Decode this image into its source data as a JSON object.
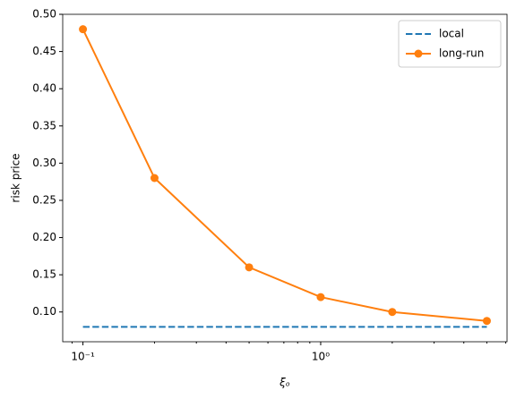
{
  "chart_data": {
    "type": "line",
    "xlabel": "ξₒ",
    "ylabel": "risk price",
    "x": [
      0.1,
      0.2,
      0.5,
      1,
      2,
      5
    ],
    "series": [
      {
        "name": "local",
        "color": "#1f77b4",
        "linestyle": "dashed",
        "marker": false,
        "values": [
          0.08,
          0.08,
          0.08,
          0.08,
          0.08,
          0.08
        ]
      },
      {
        "name": "long-run",
        "color": "#ff7f0e",
        "linestyle": "solid",
        "marker": true,
        "values": [
          0.48,
          0.28,
          0.16,
          0.12,
          0.1,
          0.088
        ]
      }
    ],
    "xscale": "log",
    "xlim": [
      0.0822,
      6.08
    ],
    "xticks": [
      {
        "value": 0.1,
        "label": "10⁻¹"
      },
      {
        "value": 1,
        "label": "10⁰"
      }
    ],
    "xminorticks": [
      0.09,
      0.2,
      0.3,
      0.4,
      0.5,
      0.6,
      0.7,
      0.8,
      0.9,
      2,
      3,
      4,
      5,
      6
    ],
    "ylim": [
      0.06,
      0.5
    ],
    "yticks": [
      {
        "value": 0.1,
        "label": "0.10"
      },
      {
        "value": 0.15,
        "label": "0.15"
      },
      {
        "value": 0.2,
        "label": "0.20"
      },
      {
        "value": 0.25,
        "label": "0.25"
      },
      {
        "value": 0.3,
        "label": "0.30"
      },
      {
        "value": 0.35,
        "label": "0.35"
      },
      {
        "value": 0.4,
        "label": "0.40"
      },
      {
        "value": 0.45,
        "label": "0.45"
      },
      {
        "value": 0.5,
        "label": "0.50"
      }
    ],
    "grid": false,
    "legend": "upper right"
  }
}
